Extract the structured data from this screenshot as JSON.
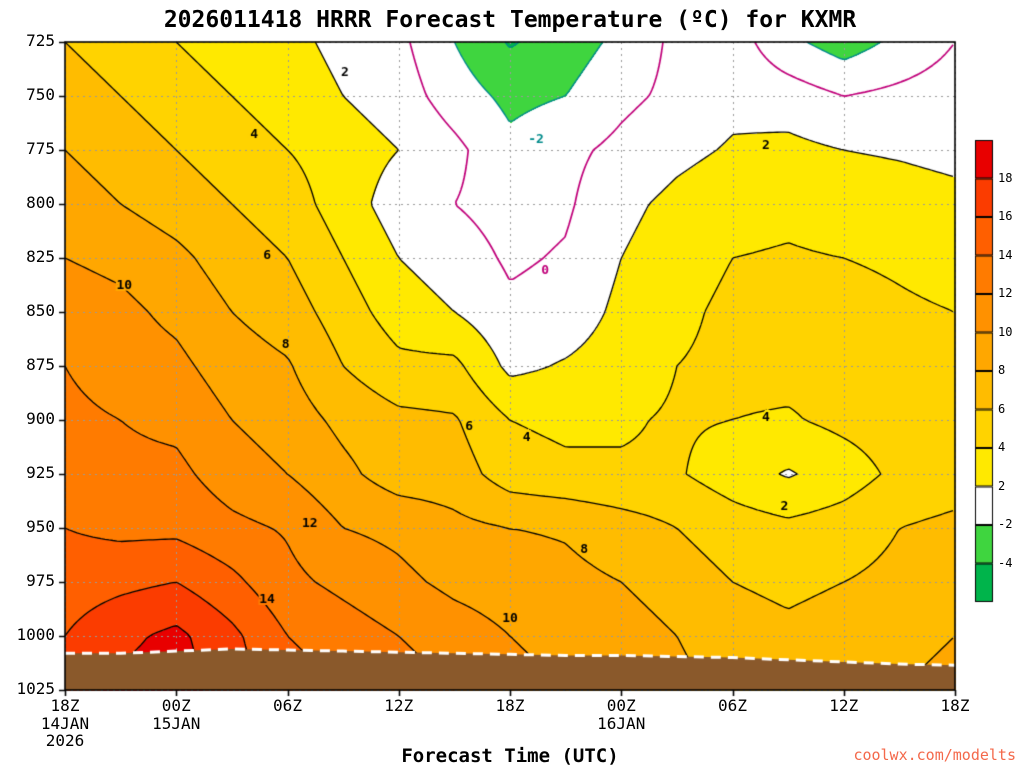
{
  "chart_data": {
    "type": "heatmap",
    "title": "2026011418 HRRR Forecast Temperature (ºC) for KXMR",
    "xlabel": "Forecast Time (UTC)",
    "watermark": "coolwx.com/modelts",
    "xlim_hours": [
      0,
      48
    ],
    "ylim_pressure_hpa": [
      725,
      1025
    ],
    "x_ticks": [
      {
        "hour": 0,
        "label": "18Z"
      },
      {
        "hour": 6,
        "label": "00Z"
      },
      {
        "hour": 12,
        "label": "06Z"
      },
      {
        "hour": 18,
        "label": "12Z"
      },
      {
        "hour": 24,
        "label": "18Z"
      },
      {
        "hour": 30,
        "label": "00Z"
      },
      {
        "hour": 36,
        "label": "06Z"
      },
      {
        "hour": 42,
        "label": "12Z"
      },
      {
        "hour": 48,
        "label": "18Z"
      }
    ],
    "x_date_labels": [
      {
        "hour": 0,
        "lines": [
          "14JAN",
          "2026"
        ]
      },
      {
        "hour": 6,
        "lines": [
          "15JAN"
        ]
      },
      {
        "hour": 30,
        "lines": [
          "16JAN"
        ]
      }
    ],
    "y_ticks": [
      725,
      750,
      775,
      800,
      825,
      850,
      875,
      900,
      925,
      950,
      975,
      1000,
      1025
    ],
    "grid": {
      "hours": [
        0,
        3,
        6,
        9,
        12,
        15,
        18,
        21,
        24,
        27,
        30,
        33,
        36,
        39,
        42,
        45,
        48
      ],
      "pressure_hpa": [
        725,
        750,
        775,
        800,
        825,
        850,
        875,
        900,
        925,
        950,
        975,
        1000,
        1025
      ],
      "temps_c": [
        [
          6,
          5,
          4,
          3,
          2.5,
          1.5,
          0.5,
          -2,
          -4.2,
          -3,
          -1.5,
          0.5,
          1,
          -1.5,
          -3,
          -1.5,
          0
        ],
        [
          7,
          6,
          5,
          4,
          3,
          2,
          1,
          -1,
          -2.5,
          -2,
          -0.5,
          0.5,
          1.5,
          1,
          0,
          0.5,
          1
        ],
        [
          8,
          7,
          6,
          5,
          4,
          3,
          2,
          0.5,
          -1.5,
          -0.5,
          0.5,
          1.5,
          2.2,
          2.5,
          2,
          1.8,
          1.5
        ],
        [
          9,
          8,
          7,
          6,
          5,
          3,
          1,
          0,
          -0.8,
          -0.3,
          1.5,
          2.5,
          3.2,
          3.5,
          3,
          2.8,
          2.5
        ],
        [
          10,
          9.5,
          8.5,
          7,
          6,
          4,
          2,
          1,
          -0.3,
          0.2,
          2,
          3,
          4,
          4.2,
          4,
          3.8,
          3.5
        ],
        [
          11,
          10.5,
          9.5,
          8,
          7,
          5,
          3,
          2,
          0.4,
          0.8,
          2.5,
          3.5,
          4.5,
          4.8,
          4.5,
          4.2,
          4
        ],
        [
          12,
          11,
          10.5,
          9,
          8.2,
          6,
          4.5,
          4.5,
          1.5,
          2.2,
          3,
          4,
          4.5,
          4.6,
          4.5,
          4.5,
          4.2
        ],
        [
          12.5,
          12,
          11.5,
          10,
          9,
          7.5,
          6.5,
          6.2,
          4,
          3.5,
          3.8,
          4.2,
          4,
          3.8,
          4.5,
          5,
          4.8
        ],
        [
          13,
          12.5,
          12.5,
          11,
          10,
          8.5,
          7,
          7,
          5,
          4.5,
          4.2,
          4.2,
          3,
          1.8,
          3,
          4.5,
          5
        ],
        [
          14,
          13.5,
          13.5,
          12.5,
          11.8,
          10,
          9.5,
          8.5,
          8,
          7.8,
          7,
          6,
          5,
          4.5,
          5,
          6,
          6.5
        ],
        [
          15,
          15.5,
          16,
          14.5,
          12.5,
          11.5,
          10.5,
          9.5,
          9,
          8.5,
          8,
          7,
          6,
          5.5,
          6,
          6.5,
          7
        ],
        [
          16,
          17.5,
          18.5,
          16.5,
          14,
          13,
          12,
          11,
          10,
          9.5,
          9,
          8,
          7,
          6.5,
          7,
          7.5,
          8
        ],
        [
          17,
          18.5,
          19,
          17,
          15,
          14,
          13,
          12,
          10.5,
          10,
          9.5,
          8.5,
          7.5,
          7,
          7.5,
          8,
          8.5
        ]
      ]
    },
    "fill_thresholds": [
      -4,
      -2,
      2,
      4,
      6,
      8,
      10,
      12,
      14,
      16,
      18
    ],
    "fill_colors": [
      "#00b44b",
      "#3fd53f",
      "#ffffff",
      "#ffe900",
      "#ffd300",
      "#ffbc00",
      "#ffa700",
      "#ff9100",
      "#ff7b00",
      "#ff5f00",
      "#fb3c00",
      "#e80000"
    ],
    "contour_levels": [
      -4,
      -2,
      0,
      2,
      4,
      6,
      8,
      10,
      12,
      14,
      16,
      18
    ],
    "style": {
      "zero_contour_color": "#c0007a",
      "negative_contour_color": "#008b8b",
      "positive_contour_color": "#000000",
      "grid_color": "#9a9a9a",
      "axis_color": "#000000",
      "terrain_color": "#8a592b",
      "terrain_outline": "#ffffff",
      "watermark_color": "#f4694b"
    },
    "colorbar": {
      "tick_labels": [
        "18",
        "16",
        "14",
        "12",
        "10",
        "8",
        "6",
        "4",
        "2",
        "-2",
        "-4"
      ],
      "colors_top_to_bottom": [
        "#e80000",
        "#fb3c00",
        "#ff5f00",
        "#ff7b00",
        "#ff9100",
        "#ffa700",
        "#ffbc00",
        "#ffd300",
        "#ffe900",
        "#ffffff",
        "#3fd53f",
        "#00b44b"
      ]
    },
    "terrain": {
      "top_pressure": [
        1008,
        1008,
        1007,
        1006,
        1006.5,
        1007,
        1007.5,
        1008,
        1008.5,
        1009,
        1009,
        1009.5,
        1010,
        1011,
        1012,
        1013,
        1013.5
      ]
    },
    "contour_labels": [
      {
        "text": "2",
        "hour": 15.1,
        "pressure": 739
      },
      {
        "text": "4",
        "hour": 10.2,
        "pressure": 768
      },
      {
        "text": "6",
        "hour": 10.9,
        "pressure": 824
      },
      {
        "text": "8",
        "hour": 11.9,
        "pressure": 865
      },
      {
        "text": "10",
        "hour": 3.2,
        "pressure": 838
      },
      {
        "text": "12",
        "hour": 13.2,
        "pressure": 948
      },
      {
        "text": "14",
        "hour": 10.9,
        "pressure": 983
      },
      {
        "text": "-2",
        "hour": 25.4,
        "pressure": 770
      },
      {
        "text": "0",
        "hour": 25.9,
        "pressure": 831
      },
      {
        "text": "6",
        "hour": 21.8,
        "pressure": 903
      },
      {
        "text": "4",
        "hour": 24.9,
        "pressure": 908
      },
      {
        "text": "8",
        "hour": 28.0,
        "pressure": 960
      },
      {
        "text": "10",
        "hour": 24.0,
        "pressure": 992
      },
      {
        "text": "4",
        "hour": 37.8,
        "pressure": 899
      },
      {
        "text": "2",
        "hour": 38.8,
        "pressure": 940
      },
      {
        "text": "2",
        "hour": 37.8,
        "pressure": 773
      }
    ]
  }
}
